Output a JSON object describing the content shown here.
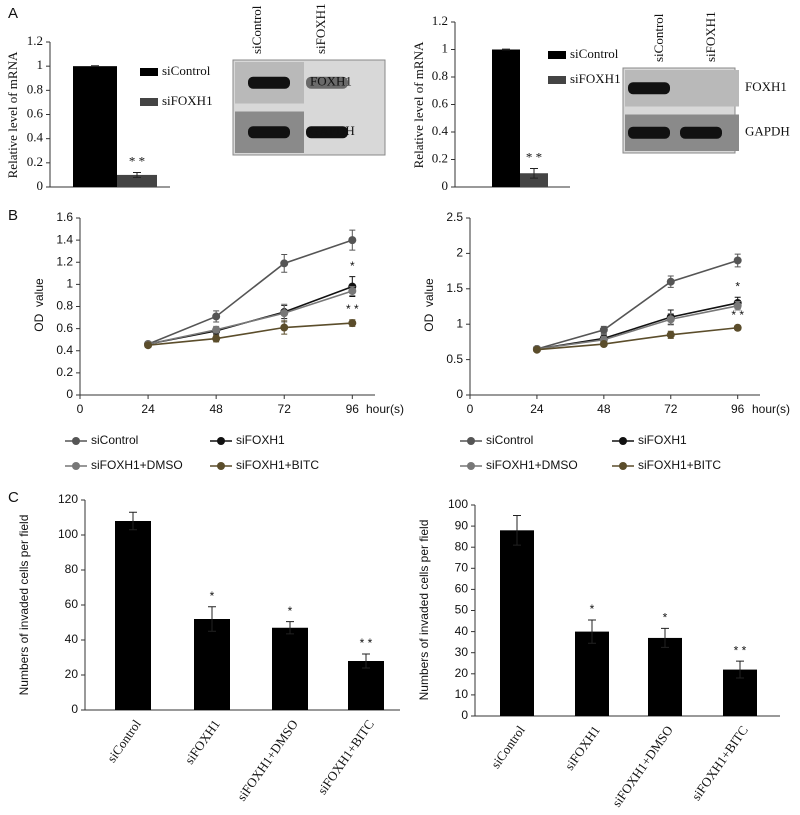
{
  "panel_labels": [
    "A",
    "B",
    "C"
  ],
  "chart_data": [
    {
      "type": "bar",
      "y_label": "Relative level of mRNA",
      "categories": [
        null
      ],
      "series": [
        {
          "name": "siControl",
          "color": "#000000",
          "values": [
            1.0
          ],
          "errors": [
            0.003
          ]
        },
        {
          "name": "siFOXH1",
          "color": "#444444",
          "values": [
            0.1
          ],
          "errors": [
            0.02
          ],
          "markers": [
            "* *"
          ]
        }
      ],
      "ylim": [
        0,
        1.2
      ],
      "yticks": [
        0,
        0.2,
        0.4,
        0.6,
        0.8,
        1,
        1.2
      ],
      "blot": {
        "lanes": [
          "siControl",
          "siFOXH1"
        ],
        "rows": [
          "FOXH1",
          "GAPDH"
        ]
      }
    },
    {
      "type": "bar",
      "y_label": "Relative level of mRNA",
      "categories": [
        null
      ],
      "series": [
        {
          "name": "siControl",
          "color": "#000000",
          "values": [
            1.0
          ],
          "errors": [
            0.003
          ]
        },
        {
          "name": "siFOXH1",
          "color": "#444444",
          "values": [
            0.1
          ],
          "errors": [
            0.035
          ],
          "markers": [
            "* *"
          ]
        }
      ],
      "ylim": [
        0,
        1.2
      ],
      "yticks": [
        0,
        0.2,
        0.4,
        0.6,
        0.8,
        1,
        1.2
      ],
      "blot": {
        "lanes": [
          "siControl",
          "siFOXH1"
        ],
        "rows": [
          "FOXH1",
          "GAPDH"
        ]
      }
    },
    {
      "type": "line",
      "y_label": "OD  value",
      "x_label": "hour(s)",
      "x": [
        24,
        48,
        72,
        96
      ],
      "series": [
        {
          "name": "siControl",
          "color": "#555555",
          "values": [
            0.46,
            0.71,
            1.19,
            1.4
          ],
          "errors": [
            0.02,
            0.05,
            0.08,
            0.09
          ]
        },
        {
          "name": "siFOXH1",
          "color": "#111111",
          "values": [
            0.46,
            0.58,
            0.75,
            0.98
          ],
          "errors": [
            0.02,
            0.03,
            0.06,
            0.09
          ],
          "markers": [
            null,
            null,
            null,
            "*"
          ]
        },
        {
          "name": "siFOXH1+DMSO",
          "color": "#777777",
          "values": [
            0.46,
            0.59,
            0.74,
            0.94
          ],
          "errors": [
            0.02,
            0.03,
            0.08,
            0.04
          ]
        },
        {
          "name": "siFOXH1+BITC",
          "color": "#5b4d2b",
          "values": [
            0.45,
            0.51,
            0.61,
            0.65
          ],
          "errors": [
            0.02,
            0.03,
            0.06,
            0.03
          ],
          "markers": [
            null,
            null,
            null,
            "* *"
          ]
        }
      ],
      "xlim": [
        0,
        104
      ],
      "xticks": [
        0,
        24,
        48,
        72,
        96
      ],
      "ylim": [
        0,
        1.6
      ],
      "yticks": [
        0,
        0.2,
        0.4,
        0.6,
        0.8,
        1,
        1.2,
        1.4,
        1.6
      ]
    },
    {
      "type": "line",
      "y_label": "OD  value",
      "x_label": "hour(s)",
      "x": [
        24,
        48,
        72,
        96
      ],
      "series": [
        {
          "name": "siControl",
          "color": "#555555",
          "values": [
            0.65,
            0.92,
            1.6,
            1.9
          ],
          "errors": [
            0.03,
            0.05,
            0.08,
            0.09
          ]
        },
        {
          "name": "siFOXH1",
          "color": "#111111",
          "values": [
            0.65,
            0.8,
            1.1,
            1.3
          ],
          "errors": [
            0.03,
            0.05,
            0.1,
            0.08
          ],
          "markers": [
            null,
            null,
            null,
            "*"
          ]
        },
        {
          "name": "siFOXH1+DMSO",
          "color": "#777777",
          "values": [
            0.65,
            0.78,
            1.07,
            1.26
          ],
          "errors": [
            0.03,
            0.05,
            0.08,
            0.06
          ]
        },
        {
          "name": "siFOXH1+BITC",
          "color": "#5b4d2b",
          "values": [
            0.64,
            0.72,
            0.85,
            0.95
          ],
          "errors": [
            0.02,
            0.03,
            0.05,
            0.03
          ],
          "markers": [
            null,
            null,
            null,
            "* *"
          ]
        }
      ],
      "xlim": [
        0,
        104
      ],
      "xticks": [
        0,
        24,
        48,
        72,
        96
      ],
      "ylim": [
        0,
        2.5
      ],
      "yticks": [
        0,
        0.5,
        1,
        1.5,
        2,
        2.5
      ]
    },
    {
      "type": "bar",
      "y_label": "Numbers of invaded cells per field",
      "categories": [
        "siControl",
        "siFOXH1",
        "siFOXH1+DMSO",
        "siFOXH1+BITC"
      ],
      "values": [
        108,
        52,
        47,
        28
      ],
      "errors": [
        5,
        7,
        3.5,
        4
      ],
      "markers": [
        null,
        "*",
        "*",
        "* *"
      ],
      "color": "#000000",
      "ylim": [
        0,
        120
      ],
      "yticks": [
        0,
        20,
        40,
        60,
        80,
        100,
        120
      ]
    },
    {
      "type": "bar",
      "y_label": "Numbers of invaded cells per field",
      "categories": [
        "siControl",
        "siFOXH1",
        "siFOXH1+DMSO",
        "siFOXH1+BITC"
      ],
      "values": [
        88,
        40,
        37,
        22
      ],
      "errors": [
        7,
        5.5,
        4.5,
        4
      ],
      "markers": [
        null,
        "*",
        "*",
        "* *"
      ],
      "color": "#000000",
      "ylim": [
        0,
        100
      ],
      "yticks": [
        0,
        10,
        20,
        30,
        40,
        50,
        60,
        70,
        80,
        90,
        100
      ]
    }
  ]
}
